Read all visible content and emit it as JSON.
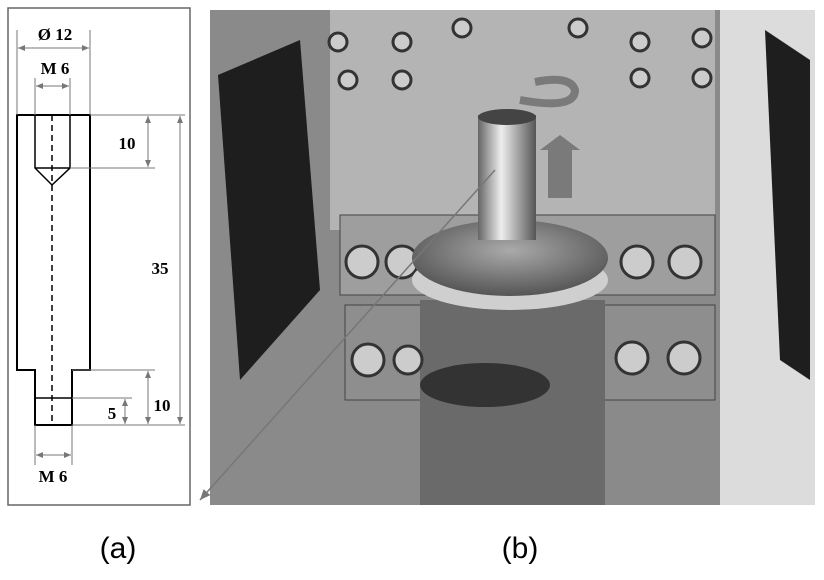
{
  "panel_a": {
    "label": "(a)",
    "dimensions": {
      "diameter": "Ø 12",
      "top_thread": "M 6",
      "top_depth": 10,
      "length": 35,
      "bottom_length": 10,
      "bottom_depth": 5,
      "bottom_thread": "M 6"
    }
  },
  "panel_b": {
    "label": "(b)"
  }
}
